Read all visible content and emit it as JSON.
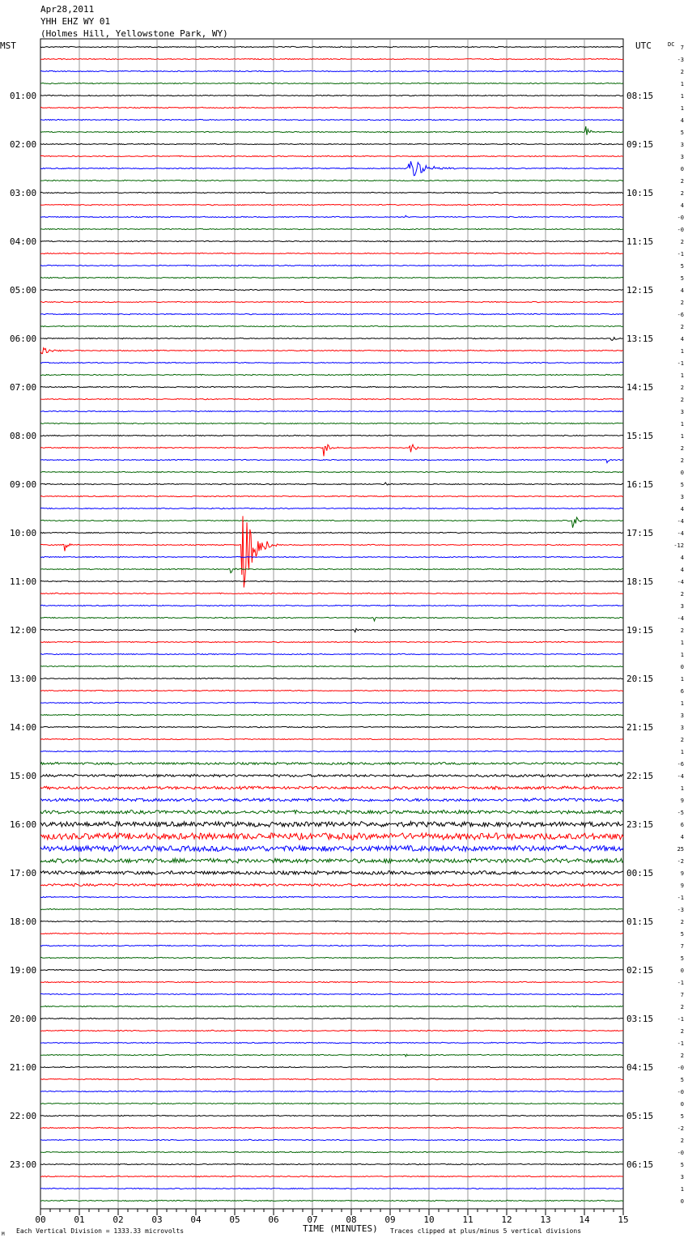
{
  "header": {
    "date": "Apr28,2011",
    "station": "YHH EHZ WY 01",
    "location": "(Holmes Hill, Yellowstone Park, WY)"
  },
  "left_axis_label": "MST",
  "right_axis_label": "UTC",
  "dc_label": "DC",
  "footer": {
    "scale_text": "Each Vertical Division = 1333.33 microvolts",
    "xlabel": "TIME (MINUTES)",
    "clip_text": "Traces clipped at plus/minus 5 vertical divisions",
    "corner_mark": "M"
  },
  "colors": {
    "trace_cycle": [
      "#000000",
      "#ff0000",
      "#0000ff",
      "#006400"
    ],
    "grid": "#808080"
  },
  "chart_data": {
    "type": "line",
    "title": "YHH EHZ WY 01",
    "xlabel": "TIME (MINUTES)",
    "xlim": [
      0,
      15
    ],
    "x_ticks": [
      "00",
      "01",
      "02",
      "03",
      "04",
      "05",
      "06",
      "07",
      "08",
      "09",
      "10",
      "11",
      "12",
      "13",
      "14",
      "15"
    ],
    "traces_per_hour": 4,
    "mst_labels": [
      "01:00",
      "02:00",
      "03:00",
      "04:00",
      "05:00",
      "06:00",
      "07:00",
      "08:00",
      "09:00",
      "10:00",
      "11:00",
      "12:00",
      "13:00",
      "14:00",
      "15:00",
      "16:00",
      "17:00",
      "18:00",
      "19:00",
      "20:00",
      "21:00",
      "22:00",
      "23:00"
    ],
    "utc_labels": [
      "08:15",
      "09:15",
      "10:15",
      "11:15",
      "12:15",
      "13:15",
      "14:15",
      "15:15",
      "16:15",
      "17:15",
      "18:15",
      "19:15",
      "20:15",
      "21:15",
      "22:15",
      "23:15",
      "00:15",
      "01:15",
      "02:15",
      "03:15",
      "04:15",
      "05:15",
      "06:15"
    ],
    "dc_offsets": [
      "7",
      "-3",
      "2",
      "1",
      "1",
      "1",
      "4",
      "5",
      "3",
      "3",
      "0",
      "2",
      "2",
      "4",
      "-0",
      "-0",
      "2",
      "-1",
      "5",
      "5",
      "4",
      "2",
      "-6",
      "2",
      "4",
      "1",
      "-1",
      "1",
      "2",
      "2",
      "3",
      "1",
      "1",
      "2",
      "2",
      "0",
      "5",
      "3",
      "4",
      "-4",
      "-4",
      "-12",
      "4",
      "4",
      "-4",
      "2",
      "3",
      "-4",
      "2",
      "1",
      "1",
      "0",
      "1",
      "6",
      "1",
      "3",
      "3",
      "2",
      "1",
      "-6",
      "-4",
      "1",
      "9",
      "-5",
      "6",
      "4",
      "25",
      "-2",
      "9",
      "9",
      "-1",
      "-3",
      "2",
      "5",
      "7",
      "5",
      "0",
      "-1",
      "7",
      "2",
      "-1",
      "2",
      "-1",
      "2",
      "-0",
      "5",
      "-0",
      "0",
      "5",
      "-2",
      "2",
      "-0",
      "5",
      "3",
      "1",
      "0"
    ],
    "events": [
      {
        "trace": 7,
        "minute": 14.05,
        "amp": 8,
        "dur": 0.35
      },
      {
        "trace": 10,
        "minute": 9.45,
        "amp": 14,
        "dur": 1.6
      },
      {
        "trace": 14,
        "minute": 9.4,
        "amp": 2,
        "dur": 0.1
      },
      {
        "trace": 24,
        "minute": 14.7,
        "amp": 6,
        "dur": 0.4
      },
      {
        "trace": 25,
        "minute": 0.0,
        "amp": 5,
        "dur": 1.0
      },
      {
        "trace": 33,
        "minute": 7.3,
        "amp": 12,
        "dur": 0.45
      },
      {
        "trace": 33,
        "minute": 9.5,
        "amp": 12,
        "dur": 0.4
      },
      {
        "trace": 34,
        "minute": 14.6,
        "amp": 5,
        "dur": 0.2
      },
      {
        "trace": 36,
        "minute": 8.9,
        "amp": 4,
        "dur": 0.1
      },
      {
        "trace": 39,
        "minute": 13.7,
        "amp": 12,
        "dur": 0.4
      },
      {
        "trace": 41,
        "minute": 0.6,
        "amp": 10,
        "dur": 0.35
      },
      {
        "trace": 41,
        "minute": 5.2,
        "amp": 75,
        "dur": 0.9
      },
      {
        "trace": 43,
        "minute": 4.9,
        "amp": 8,
        "dur": 0.2
      },
      {
        "trace": 47,
        "minute": 8.6,
        "amp": 4,
        "dur": 0.15
      },
      {
        "trace": 48,
        "minute": 8.1,
        "amp": 4,
        "dur": 0.15
      },
      {
        "trace": 83,
        "minute": 9.4,
        "amp": 3,
        "dur": 0.15
      }
    ],
    "noisy_traces": [
      {
        "trace": 59,
        "level": 1.6
      },
      {
        "trace": 60,
        "level": 1.8
      },
      {
        "trace": 61,
        "level": 2.0
      },
      {
        "trace": 62,
        "level": 2.2
      },
      {
        "trace": 63,
        "level": 2.4
      },
      {
        "trace": 64,
        "level": 3.5
      },
      {
        "trace": 65,
        "level": 4.5
      },
      {
        "trace": 66,
        "level": 4.0
      },
      {
        "trace": 67,
        "level": 3.0
      },
      {
        "trace": 68,
        "level": 2.5
      },
      {
        "trace": 69,
        "level": 1.8
      }
    ]
  }
}
